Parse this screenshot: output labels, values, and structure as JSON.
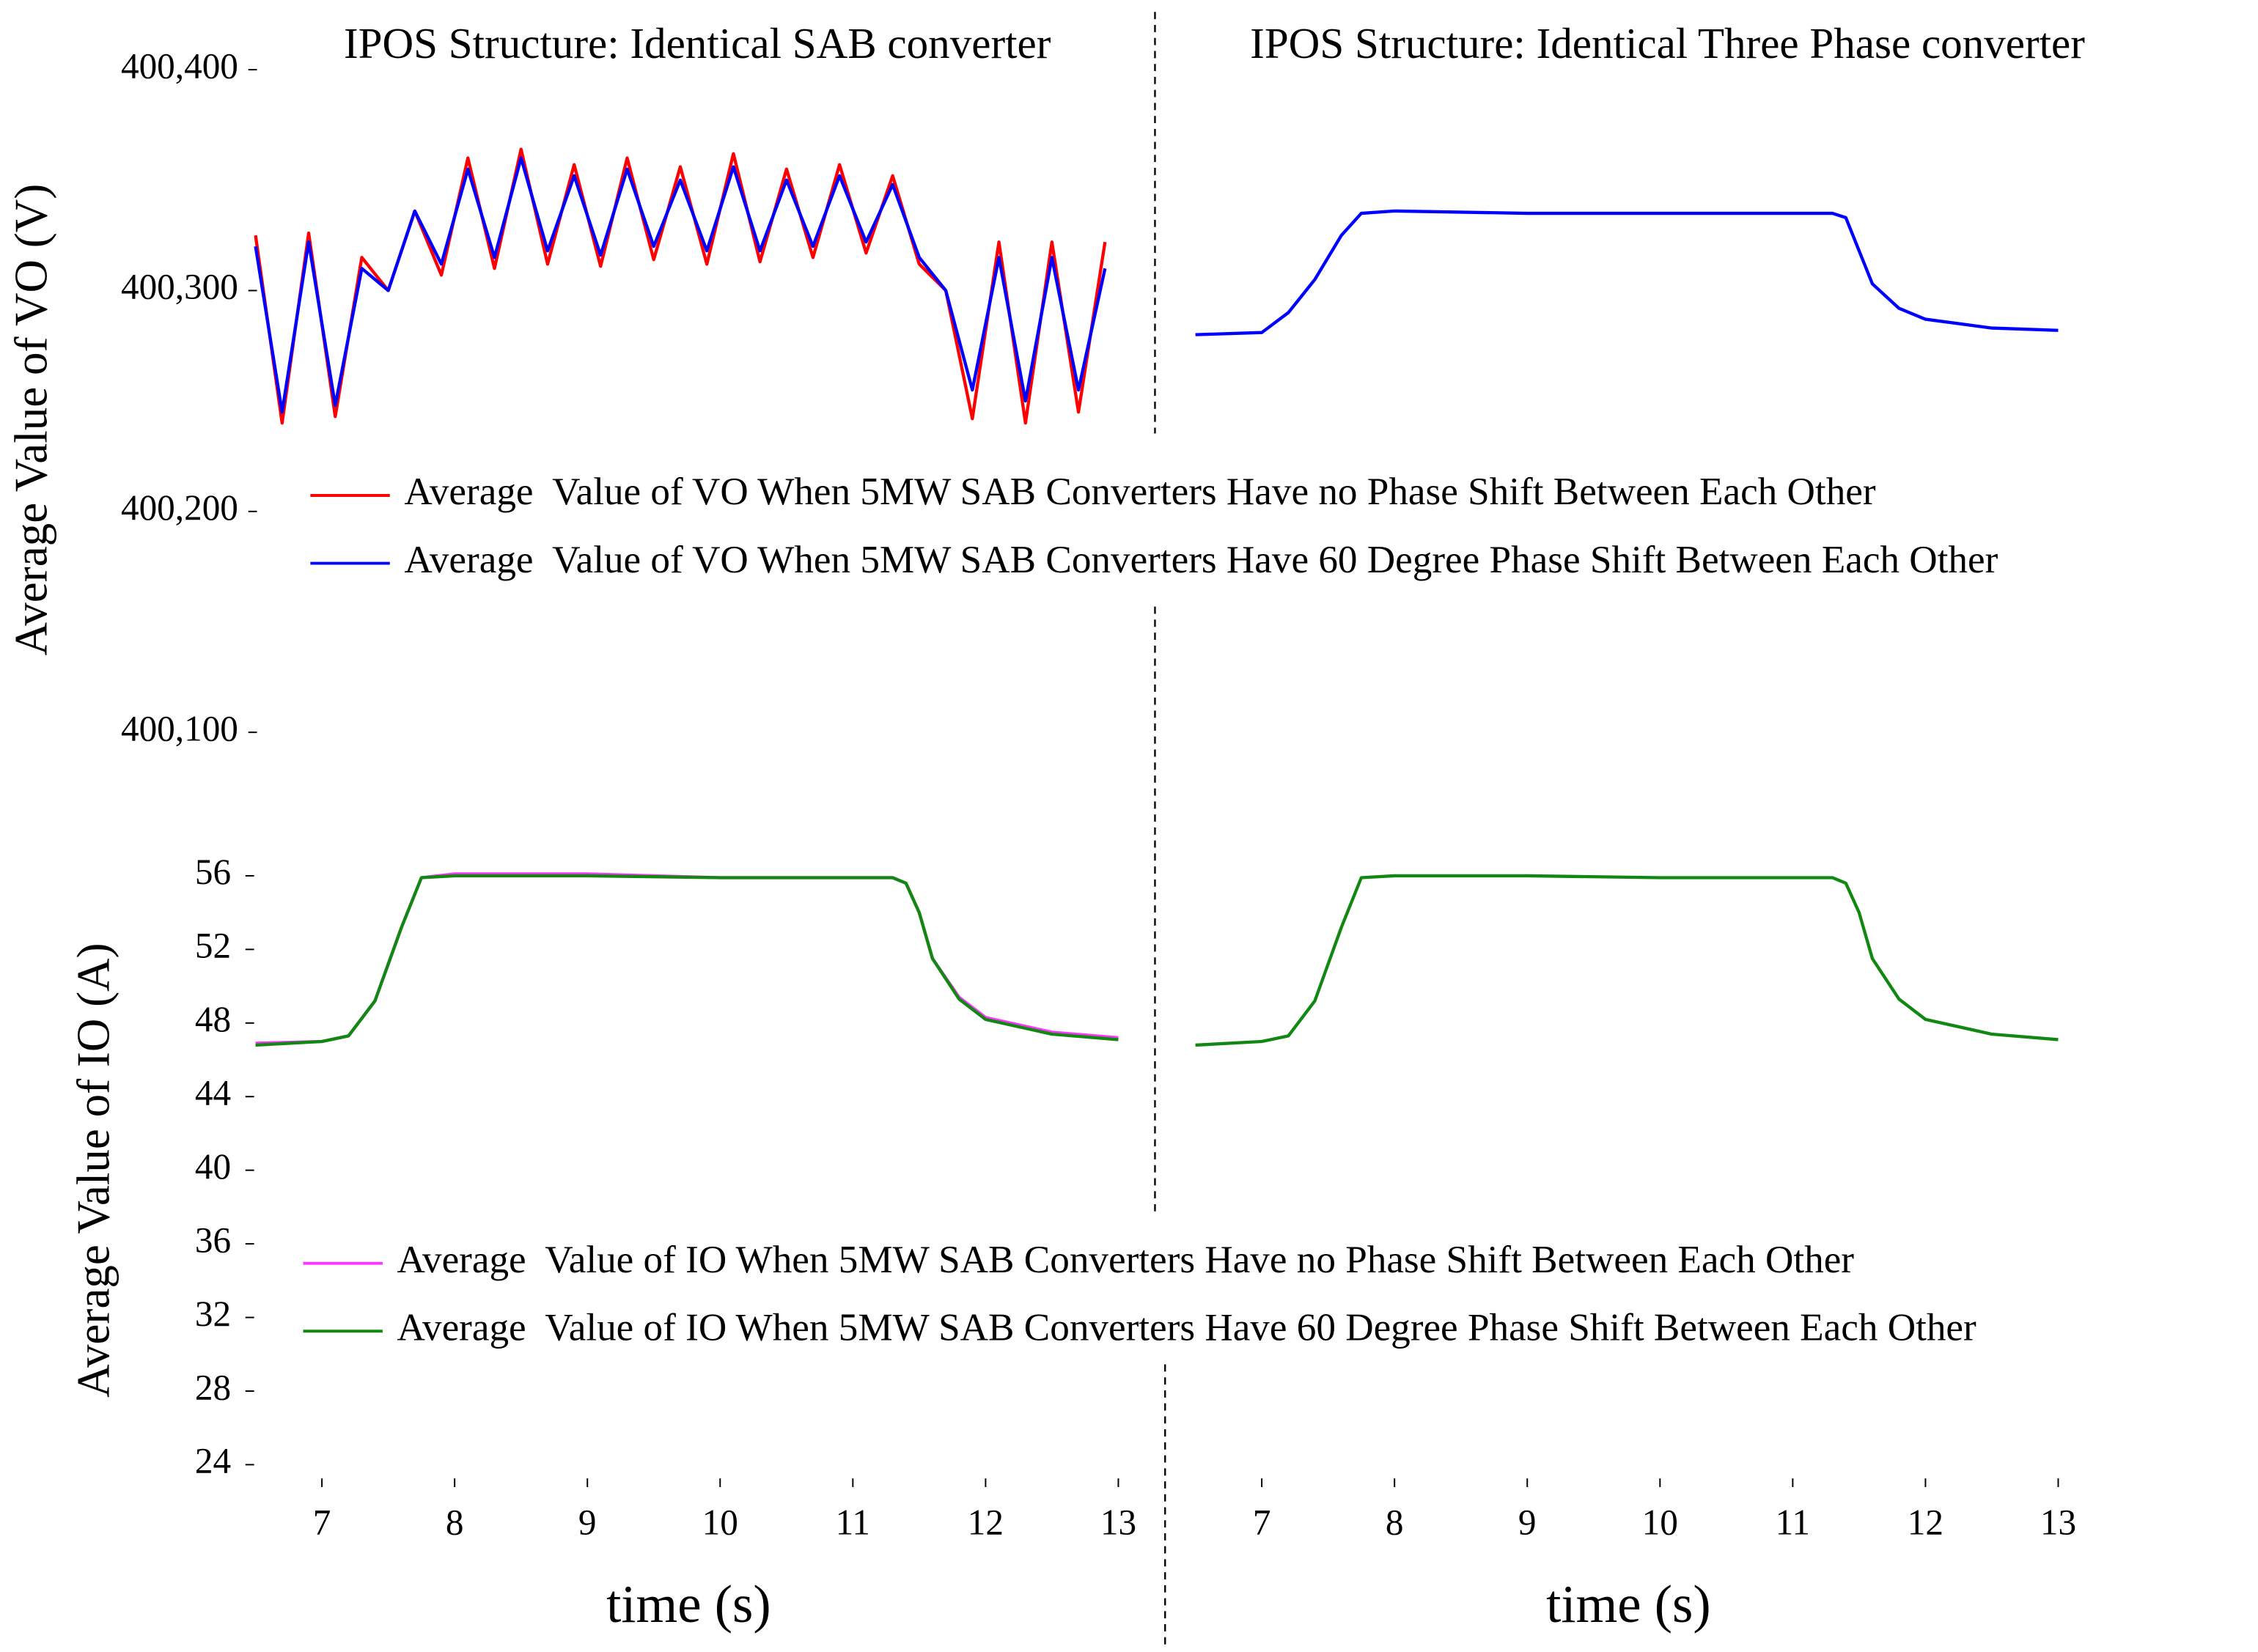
{
  "chart_data": [
    {
      "type": "line",
      "title": "IPOS Structure: Identical SAB converter",
      "ylabel": "Average Value of VO (V)",
      "xlim": [
        6.5,
        13.2
      ],
      "ylim": [
        400070,
        400400
      ],
      "yticks": [
        {
          "value": 400100,
          "label": "400,100"
        },
        {
          "value": 400200,
          "label": "400,200"
        },
        {
          "value": 400300,
          "label": "400,300"
        },
        {
          "value": 400400,
          "label": "400,400"
        }
      ],
      "x": [
        6.5,
        6.7,
        6.9,
        7.1,
        7.3,
        7.5,
        7.7,
        7.9,
        8.1,
        8.3,
        8.5,
        8.7,
        8.9,
        9.1,
        9.3,
        9.5,
        9.7,
        9.9,
        10.1,
        10.3,
        10.5,
        10.7,
        10.9,
        11.1,
        11.3,
        11.5,
        11.7,
        11.9,
        12.1,
        12.3,
        12.5,
        12.7,
        12.9
      ],
      "series": [
        {
          "name": "Average  Value of VO When 5MW SAB Converters Have no Phase Shift Between Each Other",
          "color": "#ff0000",
          "values": [
            400325,
            400240,
            400326,
            400243,
            400315,
            400300,
            400336,
            400307,
            400360,
            400310,
            400364,
            400312,
            400357,
            400311,
            400360,
            400314,
            400356,
            400312,
            400362,
            400313,
            400355,
            400315,
            400357,
            400317,
            400352,
            400312,
            400300,
            400242,
            400322,
            400240,
            400322,
            400245,
            400322
          ]
        },
        {
          "name": "Average  Value of VO When 5MW SAB Converters Have 60 Degree Phase Shift Between Each Other",
          "color": "#0000ff",
          "values": [
            400320,
            400245,
            400322,
            400248,
            400310,
            400300,
            400336,
            400312,
            400355,
            400315,
            400360,
            400318,
            400352,
            400316,
            400355,
            400320,
            400350,
            400318,
            400356,
            400318,
            400350,
            400320,
            400352,
            400322,
            400348,
            400315,
            400300,
            400255,
            400315,
            400250,
            400315,
            400255,
            400310
          ]
        }
      ]
    },
    {
      "type": "line",
      "title": "IPOS Structure: Identical Three Phase converter",
      "xlim": [
        6.5,
        13.2
      ],
      "ylim": [
        400070,
        400400
      ],
      "x": [
        6.5,
        7.0,
        7.2,
        7.4,
        7.6,
        7.75,
        8,
        9,
        10,
        11,
        11.3,
        11.4,
        11.5,
        11.6,
        11.8,
        12,
        12.5,
        13
      ],
      "series": [
        {
          "color": "#0000ff",
          "values": [
            400280,
            400281,
            400290,
            400305,
            400325,
            400335,
            400336,
            400335,
            400335,
            400335,
            400335,
            400333,
            400318,
            400303,
            400292,
            400287,
            400283,
            400282
          ]
        }
      ]
    },
    {
      "type": "line",
      "ylabel": "Average Value of IO (A)",
      "xlabel": "time (s)",
      "xlim": [
        6.5,
        13.2
      ],
      "ylim": [
        22,
        58
      ],
      "yticks": [
        24,
        28,
        32,
        36,
        40,
        44,
        48,
        52,
        56
      ],
      "xticks": [
        7,
        8,
        9,
        10,
        11,
        12,
        13
      ],
      "x": [
        6.5,
        7.0,
        7.2,
        7.4,
        7.6,
        7.75,
        8,
        9,
        10,
        11,
        11.3,
        11.4,
        11.5,
        11.6,
        11.8,
        12,
        12.5,
        13
      ],
      "series": [
        {
          "name": "Average  Value of IO When 5MW SAB Converters Have no Phase Shift Between Each Other",
          "color": "#ff33ff",
          "values": [
            46.9,
            47.0,
            47.3,
            49.2,
            53.2,
            55.9,
            56.1,
            56.1,
            55.9,
            55.9,
            55.9,
            55.6,
            54,
            51.5,
            49.4,
            48.3,
            47.5,
            47.2
          ]
        },
        {
          "name": "Average  Value of IO When 5MW SAB Converters Have 60 Degree Phase Shift Between Each Other",
          "color": "#118811",
          "values": [
            46.8,
            47.0,
            47.3,
            49.2,
            53.2,
            55.9,
            56,
            56,
            55.9,
            55.9,
            55.9,
            55.6,
            54,
            51.5,
            49.3,
            48.2,
            47.4,
            47.1
          ]
        }
      ]
    },
    {
      "type": "line",
      "xlabel": "time (s)",
      "xlim": [
        6.5,
        13.2
      ],
      "ylim": [
        22,
        58
      ],
      "xticks": [
        7,
        8,
        9,
        10,
        11,
        12,
        13
      ],
      "x": [
        6.5,
        7.0,
        7.2,
        7.4,
        7.6,
        7.75,
        8,
        9,
        10,
        11,
        11.3,
        11.4,
        11.5,
        11.6,
        11.8,
        12,
        12.5,
        13
      ],
      "series": [
        {
          "color": "#118811",
          "values": [
            46.8,
            47.0,
            47.3,
            49.2,
            53.2,
            55.9,
            56,
            56,
            55.9,
            55.9,
            55.9,
            55.6,
            54,
            51.5,
            49.3,
            48.2,
            47.4,
            47.1
          ]
        }
      ]
    }
  ]
}
